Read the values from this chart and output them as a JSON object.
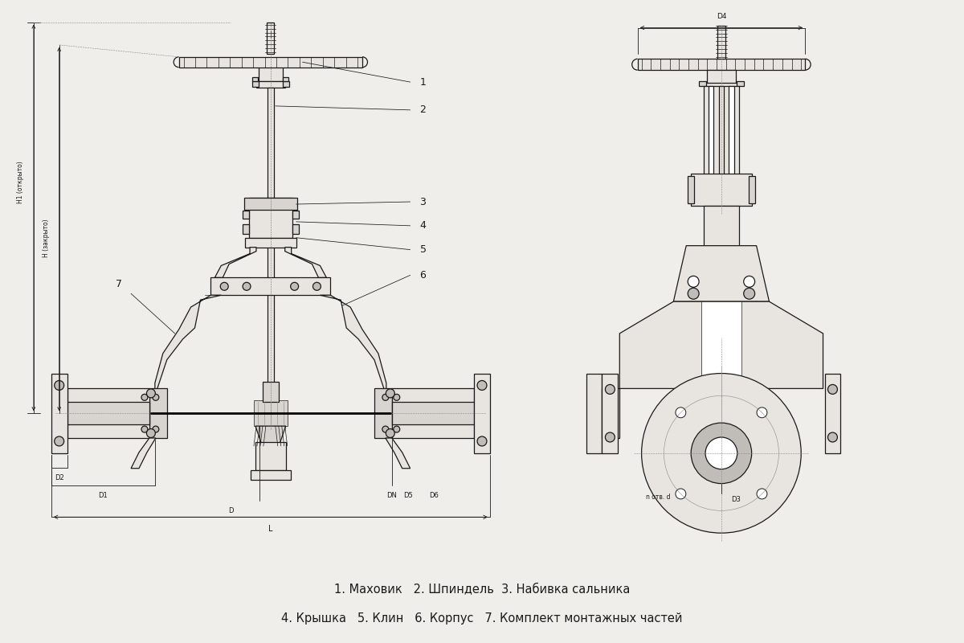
{
  "bg_color": "#f0eeea",
  "line_color": "#1a1a1a",
  "fill_light": "#e8e5e0",
  "fill_mid": "#d8d5d0",
  "fill_dark": "#c0bdb8",
  "title_line1": "1. Маховик   2. Шпиндель  3. Набивка сальника",
  "title_line2": "4. Крышка   5. Клин   6. Корпус   7. Комплект монтажных частей",
  "dim_H1_open": "Н1 (открыто)",
  "dim_H_closed": "Н (закрыто)",
  "dim_D2": "D2",
  "dim_D1": "D1",
  "dim_D": "D",
  "dim_DN": "DN",
  "dim_D5": "D5",
  "dim_D6": "D6",
  "dim_L": "L",
  "dim_D4": "D4",
  "dim_D3": "D3",
  "dim_d": "n отв. d"
}
